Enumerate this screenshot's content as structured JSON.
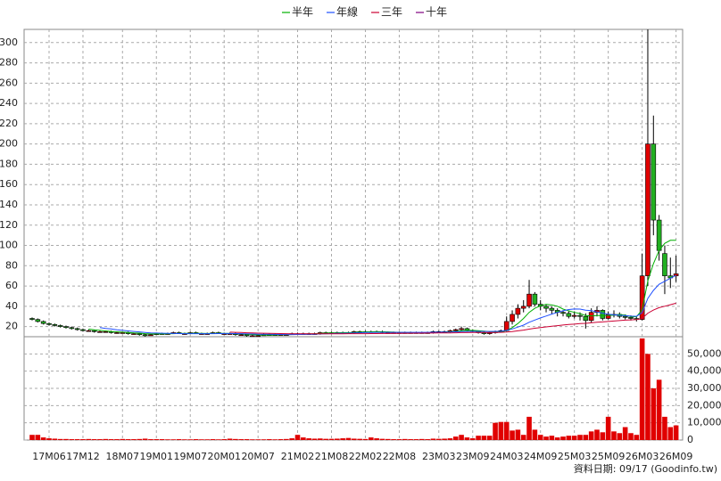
{
  "chart_data": {
    "type": "candlestick",
    "source_note": "資料日期: 09/17 (Goodinfo.tw)",
    "categories": [
      null,
      null,
      null,
      "17M06",
      null,
      null,
      null,
      null,
      null,
      "17M12",
      null,
      null,
      null,
      null,
      null,
      null,
      "18M07",
      null,
      null,
      null,
      null,
      null,
      "19M01",
      null,
      null,
      null,
      null,
      null,
      "19M07",
      null,
      null,
      null,
      null,
      null,
      "20M01",
      null,
      null,
      null,
      null,
      null,
      "20M07",
      null,
      null,
      null,
      null,
      null,
      null,
      "21M02",
      null,
      null,
      null,
      null,
      null,
      "21M08",
      null,
      null,
      null,
      null,
      null,
      "22M02",
      null,
      null,
      null,
      null,
      null,
      "22M08",
      null,
      null,
      null,
      null,
      null,
      null,
      "23M03",
      null,
      null,
      null,
      null,
      null,
      "23M09",
      null,
      null,
      null,
      null,
      null,
      "24M03",
      null,
      null,
      null,
      null,
      null,
      "24M09",
      null,
      null,
      null,
      null,
      null,
      "25M03",
      null,
      null,
      null,
      null,
      null,
      "25M09",
      null,
      null,
      null,
      null,
      null,
      "26M03",
      null,
      null,
      null,
      null,
      null,
      "26M09"
    ],
    "open": [
      28,
      27,
      25,
      23,
      22,
      21,
      20,
      19,
      18,
      17,
      16,
      16,
      15,
      15,
      15,
      14,
      14,
      14,
      13,
      13,
      12,
      11,
      12,
      13,
      13,
      13,
      14,
      13,
      13,
      14,
      13,
      13,
      13,
      14,
      13,
      13,
      13,
      12,
      12,
      11,
      11,
      11,
      12,
      12,
      12,
      12,
      12,
      13,
      13,
      13,
      13,
      13,
      14,
      14,
      14,
      14,
      14,
      14,
      15,
      15,
      15,
      15,
      15,
      14,
      14,
      14,
      14,
      14,
      14,
      14,
      14,
      14,
      15,
      15,
      15,
      16,
      17,
      18,
      16,
      15,
      14,
      13,
      14,
      15,
      16,
      25,
      32,
      38,
      40,
      52,
      42,
      40,
      38,
      36,
      34,
      33,
      30,
      31,
      30,
      26,
      34,
      36,
      28,
      32,
      32,
      30,
      29,
      28,
      27,
      70,
      200,
      125,
      92,
      70,
      70
    ],
    "high": [
      29,
      28,
      26,
      24,
      23,
      22,
      21,
      20,
      19,
      18,
      17,
      17,
      16,
      16,
      16,
      15,
      15,
      15,
      14,
      14,
      13,
      13,
      14,
      14,
      14,
      15,
      15,
      14,
      15,
      15,
      14,
      14,
      15,
      15,
      14,
      14,
      14,
      13,
      13,
      12,
      12,
      13,
      13,
      13,
      13,
      13,
      14,
      14,
      14,
      14,
      14,
      15,
      15,
      15,
      15,
      15,
      15,
      16,
      16,
      16,
      16,
      16,
      16,
      15,
      15,
      15,
      15,
      15,
      15,
      15,
      15,
      16,
      16,
      16,
      17,
      18,
      20,
      19,
      17,
      16,
      15,
      15,
      16,
      17,
      30,
      36,
      42,
      46,
      66,
      54,
      46,
      42,
      40,
      38,
      36,
      35,
      35,
      34,
      33,
      38,
      40,
      37,
      35,
      36,
      34,
      32,
      31,
      30,
      92,
      313,
      228,
      130,
      100,
      88,
      90
    ],
    "low": [
      26,
      24,
      22,
      21,
      20,
      19,
      18,
      17,
      16,
      15,
      15,
      14,
      14,
      14,
      13,
      13,
      13,
      12,
      12,
      11,
      10,
      11,
      12,
      12,
      12,
      13,
      13,
      12,
      13,
      13,
      12,
      12,
      13,
      13,
      12,
      12,
      11,
      11,
      10,
      10,
      10,
      11,
      11,
      11,
      11,
      11,
      12,
      12,
      12,
      12,
      12,
      12,
      13,
      13,
      13,
      13,
      13,
      13,
      14,
      14,
      14,
      14,
      13,
      13,
      13,
      13,
      13,
      13,
      13,
      13,
      13,
      13,
      14,
      14,
      14,
      15,
      16,
      15,
      14,
      13,
      12,
      12,
      13,
      14,
      15,
      22,
      28,
      34,
      38,
      40,
      36,
      34,
      32,
      30,
      30,
      28,
      28,
      26,
      18,
      24,
      30,
      26,
      27,
      29,
      28,
      27,
      26,
      25,
      26,
      60,
      110,
      85,
      52,
      58,
      64
    ],
    "close": [
      27,
      25,
      23,
      22,
      21,
      20,
      19,
      18,
      17,
      16,
      16,
      15,
      15,
      15,
      14,
      14,
      14,
      13,
      13,
      12,
      11,
      12,
      13,
      13,
      13,
      14,
      13,
      13,
      14,
      13,
      13,
      13,
      14,
      13,
      13,
      13,
      12,
      12,
      11,
      11,
      11,
      12,
      12,
      12,
      12,
      12,
      13,
      13,
      13,
      13,
      13,
      14,
      14,
      14,
      14,
      14,
      14,
      15,
      15,
      15,
      15,
      15,
      14,
      14,
      14,
      14,
      14,
      14,
      14,
      14,
      14,
      15,
      15,
      15,
      16,
      17,
      18,
      16,
      15,
      14,
      13,
      14,
      15,
      16,
      25,
      32,
      38,
      40,
      52,
      42,
      40,
      38,
      36,
      34,
      33,
      30,
      31,
      30,
      26,
      34,
      36,
      28,
      32,
      32,
      30,
      29,
      28,
      27,
      70,
      200,
      125,
      95,
      70,
      68,
      72
    ],
    "up_color": "#e00000",
    "down_color": "#22b022",
    "series": [
      {
        "name": "半年",
        "color": "#00b000",
        "values": [
          null,
          null,
          null,
          null,
          null,
          null,
          null,
          null,
          null,
          null,
          17.5,
          16.8,
          16.2,
          15.7,
          15.2,
          14.8,
          14.5,
          14.2,
          13.8,
          13.5,
          13,
          12.7,
          12.7,
          12.7,
          12.8,
          13,
          13.2,
          13.3,
          13.3,
          13.3,
          13.3,
          13.2,
          13.3,
          13.3,
          13.3,
          13.2,
          13,
          12.8,
          12.5,
          12.2,
          11.8,
          11.7,
          11.7,
          11.8,
          12,
          12,
          12.2,
          12.3,
          12.5,
          12.7,
          12.8,
          13.2,
          13.5,
          13.7,
          13.8,
          14,
          14,
          14.2,
          14.5,
          14.7,
          14.8,
          15,
          14.8,
          14.7,
          14.5,
          14.3,
          14.2,
          14,
          14,
          14,
          14,
          14.2,
          14.3,
          14.5,
          14.8,
          15.2,
          15.8,
          16.2,
          16.2,
          16,
          15.5,
          15,
          14.5,
          14.5,
          16,
          19,
          23,
          28,
          34,
          38,
          40.5,
          42,
          41.3,
          40,
          37.2,
          35.5,
          34,
          32.8,
          30.8,
          30.5,
          30.8,
          30.8,
          31,
          31.3,
          32,
          31.2,
          29.8,
          29.7,
          36.5,
          65,
          82,
          95,
          102,
          105,
          105
        ]
      },
      {
        "name": "年線",
        "color": "#1e4fff",
        "values": [
          null,
          null,
          null,
          null,
          null,
          null,
          null,
          null,
          null,
          null,
          null,
          null,
          19,
          18.2,
          17.6,
          16.8,
          16.2,
          15.7,
          15.2,
          14.7,
          14.2,
          13.8,
          13.6,
          13.4,
          13.3,
          13.2,
          13.1,
          13,
          13,
          13,
          13,
          13,
          13,
          13.1,
          13.2,
          13.2,
          13.1,
          13,
          12.9,
          12.7,
          12.5,
          12.5,
          12.4,
          12.3,
          12.2,
          12.1,
          12.1,
          12.2,
          12.3,
          12.4,
          12.5,
          12.7,
          12.9,
          13.1,
          13.3,
          13.4,
          13.5,
          13.7,
          13.9,
          14.1,
          14.2,
          14.3,
          14.3,
          14.3,
          14.3,
          14.3,
          14.3,
          14.3,
          14.3,
          14.3,
          14.3,
          14.4,
          14.4,
          14.5,
          14.6,
          14.8,
          15,
          15.2,
          15.3,
          15.3,
          15.2,
          15.2,
          15.3,
          15.4,
          16.2,
          17.6,
          19.5,
          21.4,
          24.2,
          26.4,
          28.5,
          30.4,
          32.3,
          34,
          35.6,
          36.8,
          37.3,
          37.2,
          36.2,
          35.7,
          34.4,
          33.2,
          32.2,
          31.6,
          31.2,
          30.7,
          30.3,
          30.1,
          33.6,
          47.8,
          55.7,
          61.6,
          64.6,
          67.7,
          70.4
        ]
      },
      {
        "name": "三年",
        "color": "#cc0033",
        "values": [
          null,
          null,
          null,
          null,
          null,
          null,
          null,
          null,
          null,
          null,
          null,
          null,
          null,
          null,
          null,
          null,
          null,
          null,
          null,
          null,
          null,
          null,
          null,
          null,
          null,
          null,
          null,
          null,
          null,
          null,
          null,
          null,
          null,
          null,
          null,
          14.5,
          14.3,
          14.1,
          13.9,
          13.7,
          13.5,
          13.4,
          13.3,
          13.2,
          13.1,
          13,
          12.9,
          12.9,
          12.9,
          12.9,
          12.9,
          12.9,
          12.9,
          12.9,
          12.9,
          12.9,
          13,
          13,
          13,
          13,
          13.1,
          13.1,
          13.2,
          13.2,
          13.3,
          13.3,
          13.4,
          13.4,
          13.5,
          13.5,
          13.6,
          13.6,
          13.7,
          13.8,
          13.8,
          13.9,
          14,
          14,
          14.1,
          14.1,
          14.1,
          14.2,
          14.2,
          14.3,
          14.6,
          15.1,
          15.8,
          16.5,
          17.5,
          18.3,
          19,
          19.7,
          20.3,
          20.9,
          21.5,
          22,
          22.4,
          22.9,
          23.2,
          23.7,
          24.3,
          24.6,
          25,
          25.5,
          25.9,
          26.3,
          26.6,
          26.9,
          28.1,
          33.2,
          36.3,
          38.6,
          40,
          41.5,
          43
        ]
      },
      {
        "name": "十年",
        "color": "#800080",
        "values": [
          null,
          null,
          null,
          null,
          null,
          null,
          null,
          null,
          null,
          null,
          null,
          null,
          null,
          null,
          null,
          null,
          null,
          null,
          null,
          null,
          null,
          null,
          null,
          null,
          null,
          null,
          null,
          null,
          null,
          null,
          null,
          null,
          null,
          null,
          null,
          null,
          null,
          null,
          null,
          null,
          null,
          null,
          null,
          null,
          null,
          null,
          null,
          null,
          null,
          null,
          null,
          null,
          null,
          null,
          null,
          null,
          null,
          null,
          null,
          null,
          null,
          null,
          null,
          null,
          null,
          null,
          null,
          null,
          null,
          null,
          null,
          null,
          null,
          null,
          null,
          null,
          null,
          null,
          null,
          null,
          null,
          null,
          null,
          null,
          null,
          null,
          null,
          null,
          null,
          null,
          null,
          null,
          null,
          null,
          null,
          null,
          null,
          null,
          null,
          null,
          null,
          null,
          null,
          null,
          null,
          null,
          null,
          null,
          null,
          null,
          null,
          null,
          null,
          null,
          null
        ]
      }
    ],
    "volume": [
      3000,
      3000,
      1500,
      1000,
      800,
      600,
      600,
      500,
      500,
      500,
      600,
      500,
      500,
      600,
      500,
      500,
      600,
      500,
      500,
      600,
      800,
      500,
      500,
      500,
      400,
      400,
      500,
      400,
      400,
      500,
      400,
      400,
      500,
      400,
      500,
      800,
      600,
      500,
      500,
      400,
      400,
      400,
      500,
      400,
      500,
      600,
      1000,
      3000,
      1500,
      1000,
      800,
      900,
      700,
      700,
      800,
      1000,
      1200,
      800,
      700,
      600,
      1500,
      1000,
      700,
      600,
      500,
      500,
      600,
      500,
      500,
      600,
      500,
      800,
      700,
      800,
      1000,
      2000,
      3000,
      1500,
      1000,
      2500,
      2500,
      2500,
      10000,
      10500,
      10500,
      5500,
      6000,
      3000,
      13500,
      6000,
      3000,
      2000,
      2500,
      1500,
      2000,
      2500,
      2500,
      3000,
      3000,
      5000,
      6000,
      4500,
      13500,
      5000,
      4000,
      7500,
      4000,
      3000,
      59000,
      50000,
      30000,
      35000,
      13500,
      7500,
      8500
    ],
    "volume_color": "#e00000",
    "ylim": [
      10,
      313
    ],
    "yticks": [
      20,
      40,
      60,
      80,
      100,
      120,
      140,
      160,
      180,
      200,
      220,
      240,
      260,
      280,
      300
    ],
    "y2lim": [
      0,
      60000
    ],
    "y2ticks": [
      0,
      {
        "value": 10000,
        "label": "10,000"
      },
      {
        "value": 20000,
        "label": "20,000"
      },
      {
        "value": 30000,
        "label": "30,000"
      },
      {
        "value": 40000,
        "label": "40,000"
      },
      {
        "value": 50000,
        "label": "50,000"
      }
    ],
    "grid": true
  }
}
